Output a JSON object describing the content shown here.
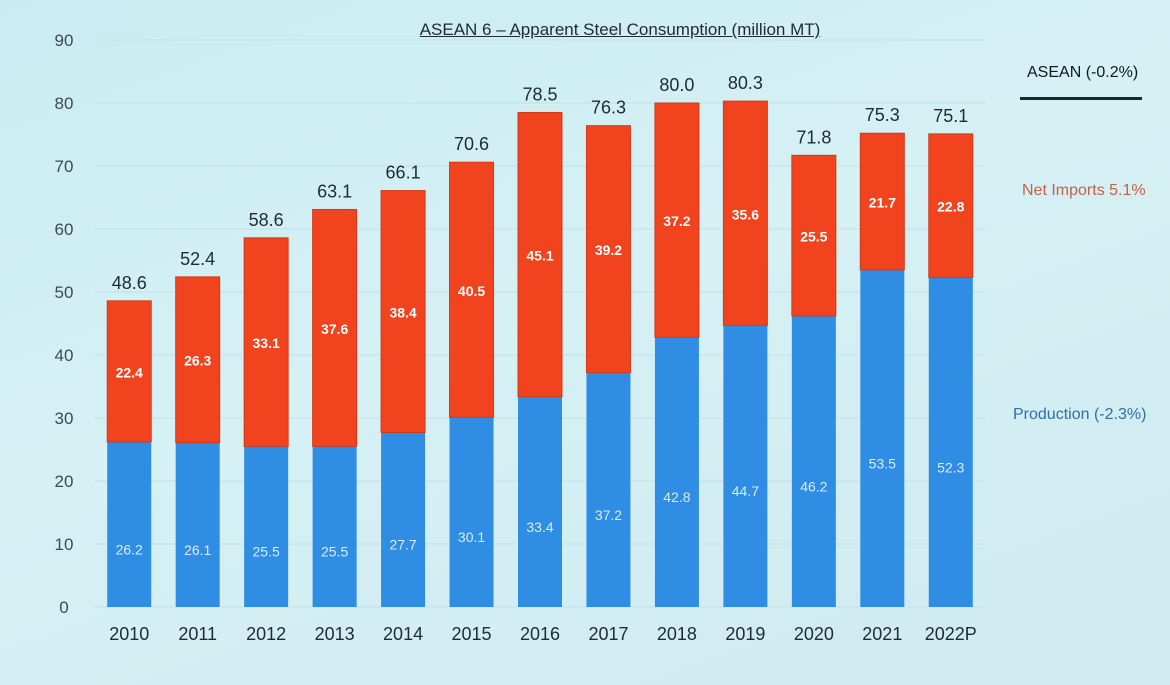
{
  "chart_data": {
    "type": "bar",
    "stacked": true,
    "title": "ASEAN 6 – Apparent Steel Consumption (million MT)",
    "categories": [
      "2010",
      "2011",
      "2012",
      "2013",
      "2014",
      "2015",
      "2016",
      "2017",
      "2018",
      "2019",
      "2020",
      "2021",
      "2022P"
    ],
    "series": [
      {
        "name": "Production (-2.3%)",
        "color": "#2f8de4",
        "values": [
          26.2,
          26.1,
          25.5,
          25.5,
          27.7,
          30.1,
          33.4,
          37.2,
          42.8,
          44.7,
          46.2,
          53.5,
          52.3
        ]
      },
      {
        "name": "Net Imports 5.1%",
        "color": "#f0431e",
        "values": [
          22.4,
          26.3,
          33.1,
          37.6,
          38.4,
          40.5,
          45.1,
          39.2,
          37.2,
          35.6,
          25.5,
          21.7,
          22.8
        ]
      }
    ],
    "totals": {
      "name": "ASEAN (-0.2%)",
      "values": [
        48.6,
        52.4,
        58.6,
        63.1,
        66.1,
        70.6,
        78.5,
        76.3,
        80.0,
        80.3,
        71.8,
        75.3,
        75.1
      ]
    },
    "value_labels": {
      "production": [
        "26.2",
        "26.1",
        "25.5",
        "25.5",
        "27.7",
        "30.1",
        "33.4",
        "37.2",
        "42.8",
        "44.7",
        "46.2",
        "53.5",
        "52.3"
      ],
      "imports": [
        "22.4",
        "26.3",
        "33.1",
        "37.6",
        "38.4",
        "40.5",
        "45.1",
        "39.2",
        "37.2",
        "35.6",
        "25.5",
        "21.7",
        "22.8"
      ],
      "totals": [
        "48.6",
        "52.4",
        "58.6",
        "63.1",
        "66.1",
        "70.6",
        "78.5",
        "76.3",
        "80.0",
        "80.3",
        "71.8",
        "75.3",
        "75.1"
      ]
    },
    "ylim": [
      0,
      90
    ],
    "yticks": [
      "0",
      "10",
      "20",
      "30",
      "40",
      "50",
      "60",
      "70",
      "80",
      "90"
    ],
    "grid": true,
    "legend_position": "right",
    "xlabel": "",
    "ylabel": ""
  }
}
